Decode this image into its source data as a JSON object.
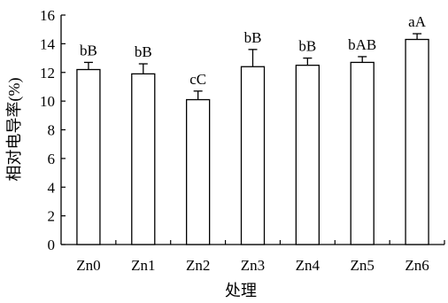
{
  "chart_data": {
    "type": "bar",
    "title": "",
    "xlabel": "处理",
    "ylabel": "相对电导率(%)",
    "ylim": [
      0,
      16
    ],
    "yticks": [
      0,
      2,
      4,
      6,
      8,
      10,
      12,
      14,
      16
    ],
    "grid": false,
    "categories": [
      "Zn0",
      "Zn1",
      "Zn2",
      "Zn3",
      "Zn4",
      "Zn5",
      "Zn6"
    ],
    "values": [
      12.2,
      11.9,
      10.1,
      12.4,
      12.5,
      12.7,
      14.3
    ],
    "errors": [
      0.5,
      0.7,
      0.6,
      1.2,
      0.5,
      0.4,
      0.4
    ],
    "significance": [
      "bB",
      "bB",
      "cC",
      "bB",
      "bB",
      "bAB",
      "aA"
    ],
    "colors": {
      "bar_fill": "#ffffff",
      "bar_stroke": "#000000",
      "axis": "#000000"
    }
  }
}
